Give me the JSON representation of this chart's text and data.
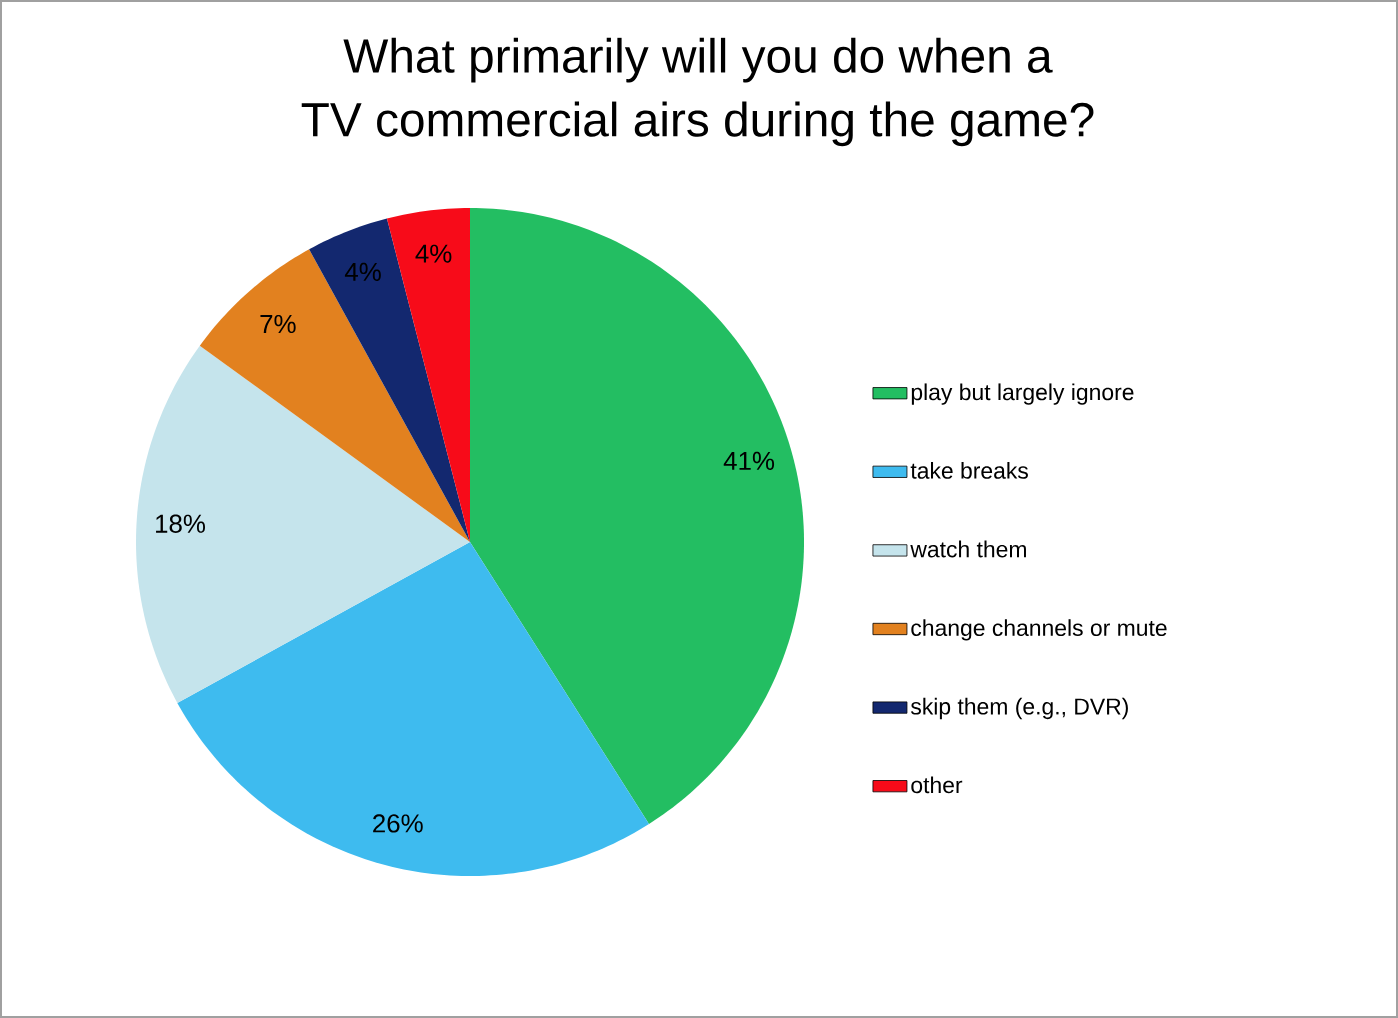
{
  "chart_data": {
    "type": "pie",
    "title": "What primarily will you do when a TV commercial airs during the game?",
    "categories": [
      "play but largely ignore",
      "take breaks",
      "watch them",
      "change channels or mute",
      "skip them (e.g., DVR)",
      "other"
    ],
    "values": [
      41,
      26,
      18,
      7,
      4,
      4
    ],
    "colors": [
      "#23be62",
      "#3ebbef",
      "#c5e4ec",
      "#e2811f",
      "#13286f",
      "#f70b19"
    ],
    "value_labels": [
      "41%",
      "26%",
      "18%",
      "7%",
      "4%",
      "4%"
    ],
    "legend": "right"
  }
}
